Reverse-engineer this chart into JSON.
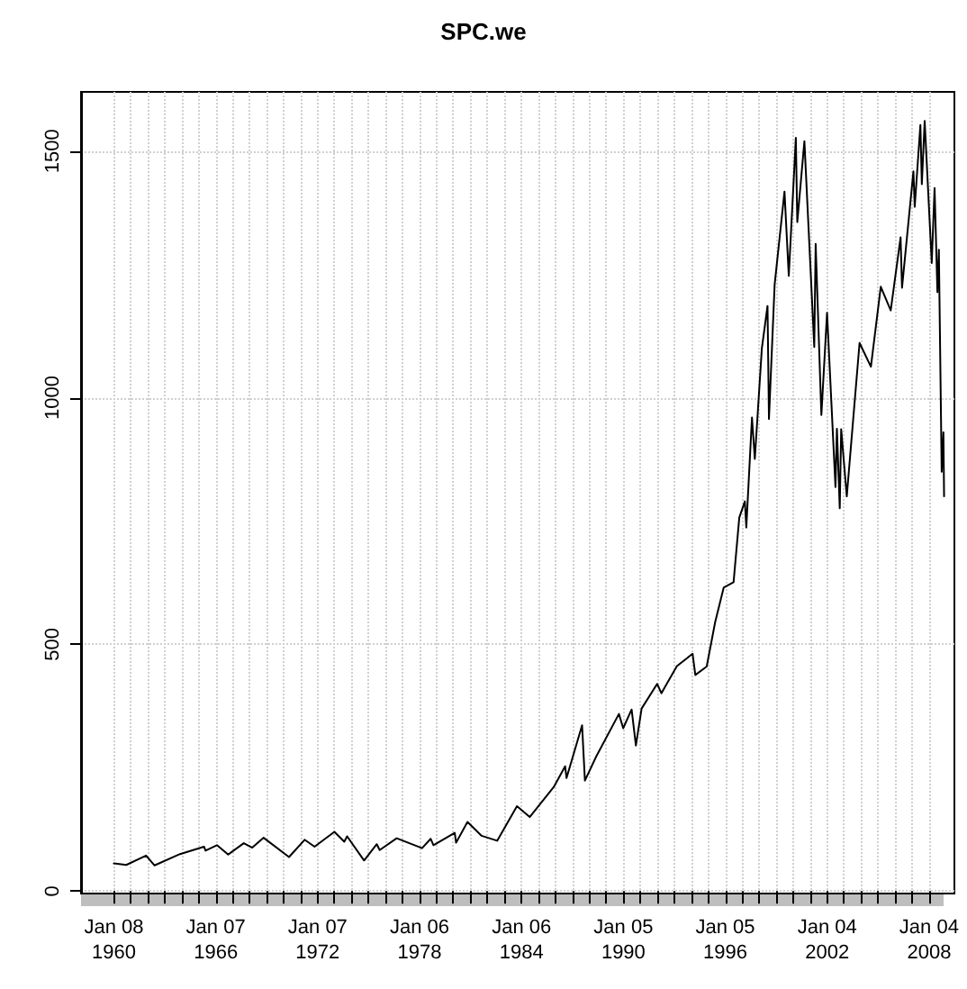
{
  "chart_data": {
    "type": "line",
    "title": "SPC.we",
    "x": [
      "1960-01-08",
      "1960-10",
      "1961-12",
      "1962-06",
      "1963-12",
      "1965-05",
      "1965-06",
      "1966-02",
      "1966-10",
      "1967-09",
      "1968-03",
      "1968-11",
      "1970-05",
      "1971-04",
      "1971-11",
      "1973-01",
      "1973-08",
      "1973-10",
      "1974-10",
      "1975-07",
      "1975-09",
      "1976-09",
      "1978-03",
      "1978-09",
      "1978-11",
      "1980-02",
      "1980-03",
      "1980-11",
      "1981-09",
      "1982-08",
      "1983-10",
      "1984-07",
      "1985-12",
      "1986-08",
      "1986-09",
      "1987-08",
      "1987-10",
      "1988-06",
      "1989-10",
      "1990-01",
      "1990-07",
      "1990-10",
      "1991-02",
      "1992-01",
      "1992-04",
      "1993-03",
      "1994-02",
      "1994-04",
      "1994-12",
      "1995-06",
      "1995-12",
      "1996-07",
      "1996-11",
      "1997-03",
      "1997-04",
      "1997-08",
      "1997-10",
      "1998-03",
      "1998-07",
      "1998-08",
      "1998-12",
      "1999-07",
      "1999-10",
      "2000-03",
      "2000-04",
      "2000-09",
      "2001-04",
      "2001-05",
      "2001-09",
      "2002-01",
      "2002-07",
      "2002-08",
      "2002-10",
      "2002-11",
      "2003-03",
      "2003-12",
      "2004-08",
      "2005-03",
      "2005-10",
      "2006-05",
      "2006-06",
      "2007-02",
      "2007-03",
      "2007-07",
      "2007-08",
      "2007-10",
      "2008-03",
      "2008-05",
      "2008-07",
      "2008-08",
      "2008-10",
      "2008-11-07",
      "2008-11-21"
    ],
    "series": [
      {
        "color": "#000000",
        "values": [
          56,
          53,
          72,
          52,
          75,
          90,
          82,
          93,
          74,
          97,
          88,
          108,
          69,
          104,
          90,
          120,
          100,
          111,
          62,
          95,
          83,
          107,
          87,
          106,
          93,
          118,
          98,
          140,
          112,
          102,
          172,
          150,
          211,
          253,
          229,
          336,
          224,
          273,
          359,
          330,
          368,
          295,
          370,
          420,
          401,
          456,
          481,
          438,
          455,
          545,
          615,
          626,
          757,
          790,
          737,
          960,
          876,
          1100,
          1186,
          957,
          1229,
          1418,
          1247,
          1527,
          1356,
          1520,
          1103,
          1312,
          965,
          1172,
          819,
          937,
          776,
          936,
          800,
          1111,
          1063,
          1225,
          1177,
          1325,
          1223,
          1459,
          1387,
          1553,
          1433,
          1561,
          1273,
          1425,
          1214,
          1300,
          850,
          930,
          800
        ]
      }
    ],
    "xlim": [
      "1958-02",
      "2009-07"
    ],
    "ylim": [
      -5,
      1620
    ],
    "xticks": [
      {
        "value": "1960-01-08",
        "label": "Jan 08\n1960"
      },
      {
        "value": "1961-01",
        "label": null
      },
      {
        "value": "1962-01",
        "label": null
      },
      {
        "value": "1963-01",
        "label": null
      },
      {
        "value": "1964-01",
        "label": null
      },
      {
        "value": "1965-01",
        "label": null
      },
      {
        "value": "1966-01-07",
        "label": "Jan 07\n1966"
      },
      {
        "value": "1967-01",
        "label": null
      },
      {
        "value": "1968-01",
        "label": null
      },
      {
        "value": "1969-01",
        "label": null
      },
      {
        "value": "1970-01",
        "label": null
      },
      {
        "value": "1971-01",
        "label": null
      },
      {
        "value": "1972-01-07",
        "label": "Jan 07\n1972"
      },
      {
        "value": "1973-01",
        "label": null
      },
      {
        "value": "1974-01",
        "label": null
      },
      {
        "value": "1975-01",
        "label": null
      },
      {
        "value": "1976-01",
        "label": null
      },
      {
        "value": "1977-01",
        "label": null
      },
      {
        "value": "1978-01-06",
        "label": "Jan 06\n1978"
      },
      {
        "value": "1979-01",
        "label": null
      },
      {
        "value": "1980-01",
        "label": null
      },
      {
        "value": "1981-01",
        "label": null
      },
      {
        "value": "1982-01",
        "label": null
      },
      {
        "value": "1983-01",
        "label": null
      },
      {
        "value": "1984-01-06",
        "label": "Jan 06\n1984"
      },
      {
        "value": "1985-01",
        "label": null
      },
      {
        "value": "1986-01",
        "label": null
      },
      {
        "value": "1987-01",
        "label": null
      },
      {
        "value": "1988-01",
        "label": null
      },
      {
        "value": "1989-01",
        "label": null
      },
      {
        "value": "1990-01-05",
        "label": "Jan 05\n1990"
      },
      {
        "value": "1991-01",
        "label": null
      },
      {
        "value": "1992-01",
        "label": null
      },
      {
        "value": "1993-01",
        "label": null
      },
      {
        "value": "1994-01",
        "label": null
      },
      {
        "value": "1995-01",
        "label": null
      },
      {
        "value": "1996-01-05",
        "label": "Jan 05\n1996"
      },
      {
        "value": "1997-01",
        "label": null
      },
      {
        "value": "1998-01",
        "label": null
      },
      {
        "value": "1999-01",
        "label": null
      },
      {
        "value": "2000-01",
        "label": null
      },
      {
        "value": "2001-01",
        "label": null
      },
      {
        "value": "2002-01-04",
        "label": "Jan 04\n2002"
      },
      {
        "value": "2003-01",
        "label": null
      },
      {
        "value": "2004-01",
        "label": null
      },
      {
        "value": "2005-01",
        "label": null
      },
      {
        "value": "2006-01",
        "label": null
      },
      {
        "value": "2007-01",
        "label": null
      },
      {
        "value": "2008-01-04",
        "label": "Jan 04\n2008"
      }
    ],
    "yticks": [
      0,
      500,
      1000,
      1500
    ],
    "grid": true,
    "marker": "none",
    "line_style": "solid"
  }
}
